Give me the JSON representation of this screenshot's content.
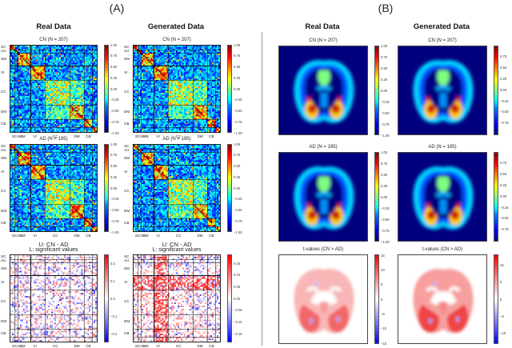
{
  "panels": {
    "A": {
      "label": "(A)",
      "col_titles": [
        "Real Data",
        "Generated Data"
      ],
      "subplots": [
        {
          "title": "CN (N = 207)",
          "cbar_ticks": [
            "1.00",
            "0.75",
            "0.50",
            "0.25",
            "0.00",
            "−0.25",
            "−0.50",
            "−0.75",
            "−1.00"
          ]
        },
        {
          "title": "CN (N = 207)",
          "cbar_ticks": [
            "1.00",
            "0.75",
            "0.50",
            "0.25",
            "0.00",
            "−0.25",
            "−0.50",
            "−0.75",
            "−1.00"
          ]
        },
        {
          "title": "AD (N = 195)",
          "cbar_ticks": [
            "1.00",
            "0.75",
            "0.50",
            "0.25",
            "0.00",
            "−0.25",
            "−0.50",
            "−0.75",
            "−1.00"
          ]
        },
        {
          "title": "AD (N = 195)",
          "cbar_ticks": [
            "1.00",
            "0.75",
            "0.50",
            "0.25",
            "0.00",
            "−0.25",
            "−0.50",
            "−0.75",
            "−1.00"
          ]
        },
        {
          "title_line1": "U: CN - AD",
          "title_line2": "L: significant values",
          "cbar_ticks": [
            "0.2",
            "0.1",
            "0.0",
            "−0.1",
            "−0.2"
          ]
        },
        {
          "title_line1": "U: CN - AD",
          "title_line2": "L: significant values",
          "cbar_ticks": [
            "0.15",
            "0.10",
            "0.05",
            "0.00",
            "−0.05",
            "−0.10",
            "−0.15"
          ]
        }
      ],
      "y_axis_labels": [
        "SC",
        "AU",
        "SM",
        "VI",
        "CC",
        "DM",
        "CB"
      ],
      "x_axis_labels": [
        "SC",
        "AU",
        "SM",
        "VI",
        "CC",
        "DM",
        "CB"
      ]
    },
    "B": {
      "label": "(B)",
      "col_titles": [
        "Real Data",
        "Generated Data"
      ],
      "subplots": [
        {
          "title": "CN (N = 207)",
          "cbar_ticks": [
            "1.00",
            "0.75",
            "0.50",
            "0.25",
            "0.00",
            "−0.25",
            "−0.50",
            "−0.75",
            "−1.00"
          ]
        },
        {
          "title": "CN (N = 207)",
          "cbar_ticks": [
            "0.75",
            "0.50",
            "0.25",
            "0.00",
            "−0.25",
            "−0.50",
            "−0.75"
          ]
        },
        {
          "title": "AD (N = 195)",
          "cbar_ticks": [
            "1.00",
            "0.75",
            "0.50",
            "0.25",
            "0.00",
            "−0.25",
            "−0.50",
            "−0.75",
            "−1.00"
          ]
        },
        {
          "title": "AD (N = 195)",
          "cbar_ticks": [
            "0.75",
            "0.50",
            "0.25",
            "0.00",
            "−0.25",
            "−0.50",
            "−0.75"
          ]
        },
        {
          "title": "t-values (CN > AD)",
          "cbar_ticks": [
            "15",
            "10",
            "5",
            "0",
            "−5",
            "−10",
            "−15"
          ]
        },
        {
          "title": "t-values (CN > AD)",
          "cbar_ticks": [
            "10",
            "5",
            "0",
            "−5",
            "−10"
          ]
        }
      ]
    }
  },
  "chart_data": [
    {
      "type": "heatmap",
      "panel": "A",
      "column": "Real Data",
      "title": "CN (N = 207)",
      "xlabel": "",
      "ylabel": "",
      "x_tick_labels": [
        "SC",
        "AU",
        "SM",
        "VI",
        "CC",
        "DM",
        "CB"
      ],
      "y_tick_labels": [
        "SC",
        "AU",
        "SM",
        "VI",
        "CC",
        "DM",
        "CB"
      ],
      "colormap": "jet",
      "clim": [
        -1.0,
        1.0
      ]
    },
    {
      "type": "heatmap",
      "panel": "A",
      "column": "Generated Data",
      "title": "CN (N = 207)",
      "x_tick_labels": [
        "SC",
        "AU",
        "SM",
        "VI",
        "CC",
        "DM",
        "CB"
      ],
      "y_tick_labels": [
        "SC",
        "AU",
        "SM",
        "VI",
        "CC",
        "DM",
        "CB"
      ],
      "colormap": "jet",
      "clim": [
        -1.0,
        1.0
      ]
    },
    {
      "type": "heatmap",
      "panel": "A",
      "column": "Real Data",
      "title": "AD (N = 195)",
      "x_tick_labels": [
        "SC",
        "AU",
        "SM",
        "VI",
        "CC",
        "DM",
        "CB"
      ],
      "y_tick_labels": [
        "SC",
        "AU",
        "SM",
        "VI",
        "CC",
        "DM",
        "CB"
      ],
      "colormap": "jet",
      "clim": [
        -1.0,
        1.0
      ]
    },
    {
      "type": "heatmap",
      "panel": "A",
      "column": "Generated Data",
      "title": "AD (N = 195)",
      "x_tick_labels": [
        "SC",
        "AU",
        "SM",
        "VI",
        "CC",
        "DM",
        "CB"
      ],
      "y_tick_labels": [
        "SC",
        "AU",
        "SM",
        "VI",
        "CC",
        "DM",
        "CB"
      ],
      "colormap": "jet",
      "clim": [
        -1.0,
        1.0
      ]
    },
    {
      "type": "heatmap",
      "panel": "A",
      "column": "Real Data",
      "title": "U: CN - AD / L: significant values",
      "x_tick_labels": [
        "SC",
        "AU",
        "SM",
        "VI",
        "CC",
        "DM",
        "CB"
      ],
      "y_tick_labels": [
        "SC",
        "AU",
        "SM",
        "VI",
        "CC",
        "DM",
        "CB"
      ],
      "colormap": "bwr",
      "clim": [
        -0.25,
        0.25
      ]
    },
    {
      "type": "heatmap",
      "panel": "A",
      "column": "Generated Data",
      "title": "U: CN - AD / L: significant values",
      "x_tick_labels": [
        "SC",
        "AU",
        "SM",
        "VI",
        "CC",
        "DM",
        "CB"
      ],
      "y_tick_labels": [
        "SC",
        "AU",
        "SM",
        "VI",
        "CC",
        "DM",
        "CB"
      ],
      "colormap": "bwr",
      "clim": [
        -0.16,
        0.16
      ]
    },
    {
      "type": "heatmap",
      "panel": "B",
      "column": "Real Data",
      "title": "CN (N = 207)",
      "colormap": "jet",
      "clim": [
        -1.0,
        1.0
      ]
    },
    {
      "type": "heatmap",
      "panel": "B",
      "column": "Generated Data",
      "title": "CN (N = 207)",
      "colormap": "jet",
      "clim": [
        -0.95,
        0.95
      ]
    },
    {
      "type": "heatmap",
      "panel": "B",
      "column": "Real Data",
      "title": "AD (N = 195)",
      "colormap": "jet",
      "clim": [
        -1.0,
        1.0
      ]
    },
    {
      "type": "heatmap",
      "panel": "B",
      "column": "Generated Data",
      "title": "AD (N = 195)",
      "colormap": "jet",
      "clim": [
        -0.95,
        0.95
      ]
    },
    {
      "type": "heatmap",
      "panel": "B",
      "column": "Real Data",
      "title": "t-values (CN > AD)",
      "colormap": "bwr",
      "clim": [
        -16,
        16
      ]
    },
    {
      "type": "heatmap",
      "panel": "B",
      "column": "Generated Data",
      "title": "t-values (CN > AD)",
      "colormap": "bwr",
      "clim": [
        -14,
        14
      ]
    }
  ]
}
